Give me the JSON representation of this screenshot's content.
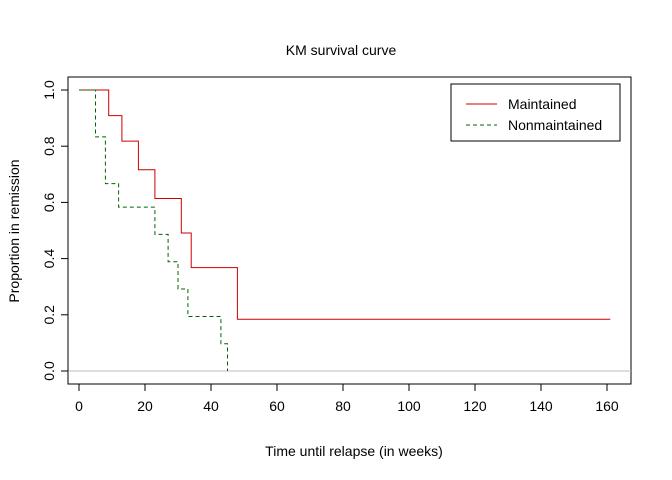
{
  "chart_data": {
    "type": "line",
    "step": true,
    "title": "KM survival curve",
    "xlabel": "Time until relapse (in weeks)",
    "ylabel": "Proportion in remission",
    "xlim": [
      0,
      161
    ],
    "ylim": [
      0,
      1
    ],
    "x_ticks": [
      0,
      20,
      40,
      60,
      80,
      100,
      120,
      140,
      160
    ],
    "y_ticks": [
      0.0,
      0.2,
      0.4,
      0.6,
      0.8,
      1.0
    ],
    "x_tick_labels": [
      "0",
      "20",
      "40",
      "60",
      "80",
      "100",
      "120",
      "140",
      "160"
    ],
    "y_tick_labels": [
      "0.0",
      "0.2",
      "0.4",
      "0.6",
      "0.8",
      "1.0"
    ],
    "reference_line_y": 0,
    "legend_position": "top-right",
    "series": [
      {
        "name": "Maintained",
        "color": "#cc0000",
        "line_style": "solid",
        "x": [
          0,
          9,
          13,
          18,
          23,
          31,
          34,
          48,
          161
        ],
        "y": [
          1.0,
          0.909,
          0.818,
          0.716,
          0.614,
          0.491,
          0.368,
          0.184,
          0.184
        ]
      },
      {
        "name": "Nonmaintained",
        "color": "#006400",
        "line_style": "dashed",
        "x": [
          0,
          5,
          8,
          12,
          23,
          27,
          30,
          33,
          43,
          45
        ],
        "y": [
          1.0,
          0.833,
          0.667,
          0.583,
          0.486,
          0.389,
          0.292,
          0.194,
          0.097,
          0.0
        ]
      }
    ]
  }
}
